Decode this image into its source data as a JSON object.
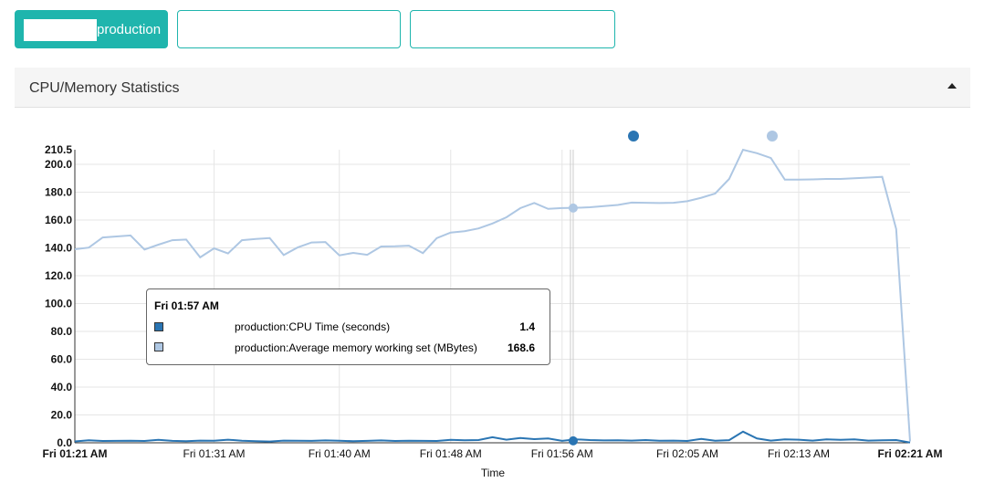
{
  "tabs": [
    {
      "label": "production",
      "active": true
    },
    {
      "label": "",
      "active": false
    },
    {
      "label": "",
      "active": false
    }
  ],
  "panel": {
    "title": "CPU/Memory Statistics"
  },
  "colors": {
    "accent": "#1fb5ad",
    "cpu": "#2a75b3",
    "memory": "#aec7e3"
  },
  "chart_data": {
    "type": "line",
    "xlabel": "Time",
    "ylabel": "",
    "ylim": [
      0,
      210.5
    ],
    "y_ticks": [
      "0.0",
      "20.0",
      "40.0",
      "60.0",
      "80.0",
      "100.0",
      "120.0",
      "140.0",
      "160.0",
      "180.0",
      "200.0",
      "210.5"
    ],
    "x_ticks": [
      "Fri 01:21 AM",
      "Fri 01:31 AM",
      "Fri 01:40 AM",
      "Fri 01:48 AM",
      "Fri 01:56 AM",
      "Fri 02:05 AM",
      "Fri 02:13 AM",
      "Fri 02:21 AM"
    ],
    "x_tick_minutes": [
      0,
      10,
      19,
      27,
      35,
      44,
      52,
      60
    ],
    "grid": true,
    "legend": "top",
    "series": [
      {
        "name": "production:CPU Time (seconds)",
        "color": "#2a75b3",
        "x_minutes": [
          0,
          1,
          2,
          3,
          4,
          5,
          6,
          7,
          8,
          9,
          10,
          11,
          12,
          13,
          14,
          15,
          16,
          17,
          18,
          19,
          20,
          21,
          22,
          23,
          24,
          25,
          26,
          27,
          28,
          29,
          30,
          31,
          32,
          33,
          34,
          35,
          36,
          37,
          38,
          39,
          40,
          41,
          42,
          43,
          44,
          45,
          46,
          47,
          48,
          49,
          50,
          51,
          52,
          53,
          54,
          55,
          56,
          57,
          58,
          59,
          60
        ],
        "values": [
          1.0,
          1.8,
          1.3,
          1.4,
          1.5,
          1.3,
          2.1,
          1.4,
          1.2,
          1.6,
          1.5,
          2.2,
          1.5,
          1.2,
          0.9,
          1.6,
          1.5,
          1.4,
          1.7,
          1.5,
          1.1,
          1.4,
          1.7,
          1.3,
          1.5,
          1.4,
          1.3,
          2.1,
          1.8,
          2.0,
          4.0,
          2.2,
          3.5,
          2.6,
          3.1,
          1.4,
          2.5,
          2.0,
          1.7,
          1.8,
          1.6,
          2.0,
          1.5,
          1.6,
          1.3,
          2.8,
          1.5,
          1.9,
          8.0,
          3.1,
          1.6,
          2.4,
          2.2,
          1.6,
          2.4,
          2.1,
          2.5,
          1.6,
          1.8,
          2.0,
          0.2
        ]
      },
      {
        "name": "production:Average memory working set (MBytes)",
        "color": "#aec7e3",
        "x_minutes": [
          0,
          1,
          2,
          3,
          4,
          5,
          6,
          7,
          8,
          9,
          10,
          11,
          12,
          13,
          14,
          15,
          16,
          17,
          18,
          19,
          20,
          21,
          22,
          23,
          24,
          25,
          26,
          27,
          28,
          29,
          30,
          31,
          32,
          33,
          34,
          35,
          36,
          37,
          38,
          39,
          40,
          41,
          42,
          43,
          44,
          45,
          46,
          47,
          48,
          49,
          50,
          51,
          52,
          53,
          54,
          55,
          56,
          57,
          58,
          59,
          60
        ],
        "values": [
          139.0,
          140.2,
          147.5,
          148.2,
          148.9,
          138.8,
          142.3,
          145.5,
          146.0,
          133.2,
          139.7,
          136.0,
          145.5,
          146.4,
          147.0,
          134.8,
          140.3,
          143.9,
          144.2,
          134.6,
          136.4,
          135.0,
          141.0,
          141.1,
          141.6,
          136.3,
          147.0,
          151.0,
          152.0,
          154.0,
          157.5,
          162.0,
          168.5,
          172.3,
          168.0,
          168.6,
          168.8,
          169.2,
          170.0,
          170.8,
          172.5,
          172.4,
          172.2,
          172.4,
          173.5,
          176.0,
          179.0,
          189.5,
          210.5,
          208.0,
          204.5,
          189.0,
          189.0,
          189.2,
          189.5,
          189.5,
          190.0,
          190.5,
          191.0,
          153.5,
          1.0
        ]
      }
    ],
    "tooltip": {
      "time": "Fri 01:57 AM",
      "items": [
        {
          "name": "production:CPU Time (seconds)",
          "value": "1.4"
        },
        {
          "name": "production:Average memory working set (MBytes)",
          "value": "168.6"
        }
      ]
    }
  }
}
